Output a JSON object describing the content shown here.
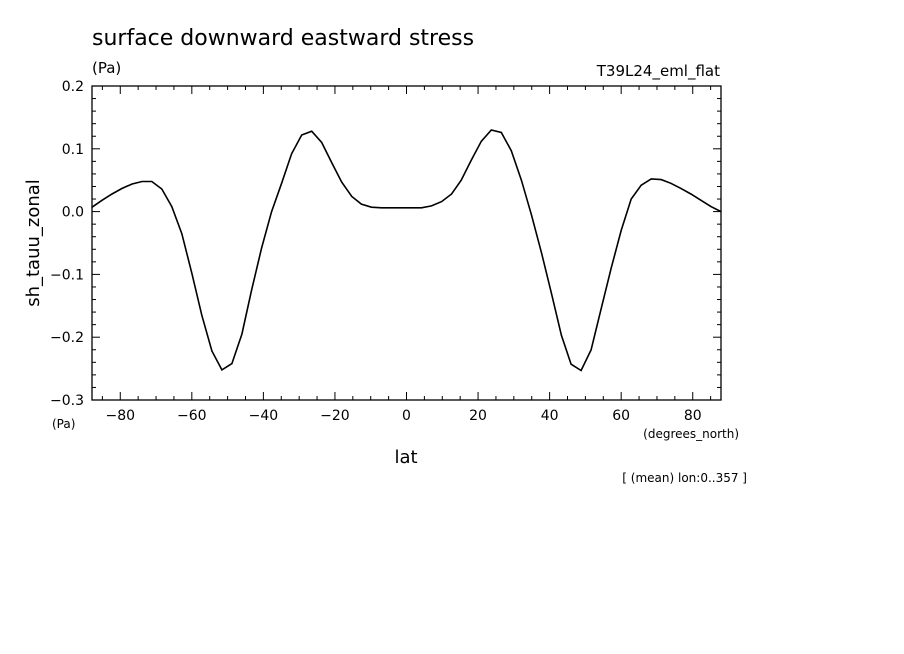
{
  "chart_data": {
    "type": "line",
    "title": "surface downward eastward stress",
    "title_unit": "(Pa)",
    "run_label": "T39L24_eml_flat",
    "ylabel": "sh_tauu_zonal",
    "y_unit": "(Pa)",
    "xlabel": "lat",
    "x_unit": "(degrees_north)",
    "footnote": "[ (mean) lon:0..357 ]",
    "xlim": [
      -87.9,
      87.9
    ],
    "ylim": [
      -0.3,
      0.2
    ],
    "x_ticks": [
      -80,
      -60,
      -40,
      -20,
      0,
      20,
      40,
      60,
      80
    ],
    "x_tick_labels": [
      "−80",
      "−60",
      "−40",
      "−20",
      "0",
      "20",
      "40",
      "60",
      "80"
    ],
    "y_ticks": [
      -0.3,
      -0.2,
      -0.1,
      0.0,
      0.1,
      0.2
    ],
    "y_tick_labels": [
      "−0.3",
      "−0.2",
      "−0.1",
      "0.0",
      "0.1",
      "0.2"
    ],
    "grid": false,
    "series": [
      {
        "x": [
          -87.9,
          -85.1,
          -82.3,
          -79.5,
          -76.7,
          -73.9,
          -71.2,
          -68.4,
          -65.6,
          -62.8,
          -60.0,
          -57.2,
          -54.4,
          -51.6,
          -48.8,
          -46.0,
          -43.3,
          -40.5,
          -37.7,
          -34.9,
          -32.1,
          -29.3,
          -26.5,
          -23.7,
          -20.9,
          -18.1,
          -15.3,
          -12.6,
          -9.8,
          -7.0,
          -4.2,
          -1.4,
          1.4,
          4.2,
          7.0,
          9.8,
          12.6,
          15.3,
          18.1,
          20.9,
          23.7,
          26.5,
          29.3,
          32.1,
          34.9,
          37.7,
          40.5,
          43.3,
          46.0,
          48.8,
          51.6,
          54.4,
          57.2,
          60.0,
          62.8,
          65.6,
          68.4,
          71.2,
          73.9,
          76.7,
          79.5,
          82.3,
          85.1,
          87.9
        ],
        "y": [
          0.007,
          0.018,
          0.028,
          0.037,
          0.044,
          0.048,
          0.048,
          0.036,
          0.008,
          -0.035,
          -0.098,
          -0.165,
          -0.222,
          -0.252,
          -0.242,
          -0.195,
          -0.125,
          -0.058,
          0.0,
          0.045,
          0.092,
          0.122,
          0.128,
          0.11,
          0.078,
          0.047,
          0.024,
          0.012,
          0.007,
          0.006,
          0.006,
          0.006,
          0.006,
          0.006,
          0.009,
          0.016,
          0.028,
          0.05,
          0.082,
          0.112,
          0.13,
          0.126,
          0.097,
          0.05,
          -0.005,
          -0.065,
          -0.13,
          -0.197,
          -0.243,
          -0.253,
          -0.22,
          -0.155,
          -0.09,
          -0.03,
          0.02,
          0.042,
          0.052,
          0.051,
          0.045,
          0.037,
          0.028,
          0.018,
          0.008,
          0.0
        ]
      }
    ]
  }
}
